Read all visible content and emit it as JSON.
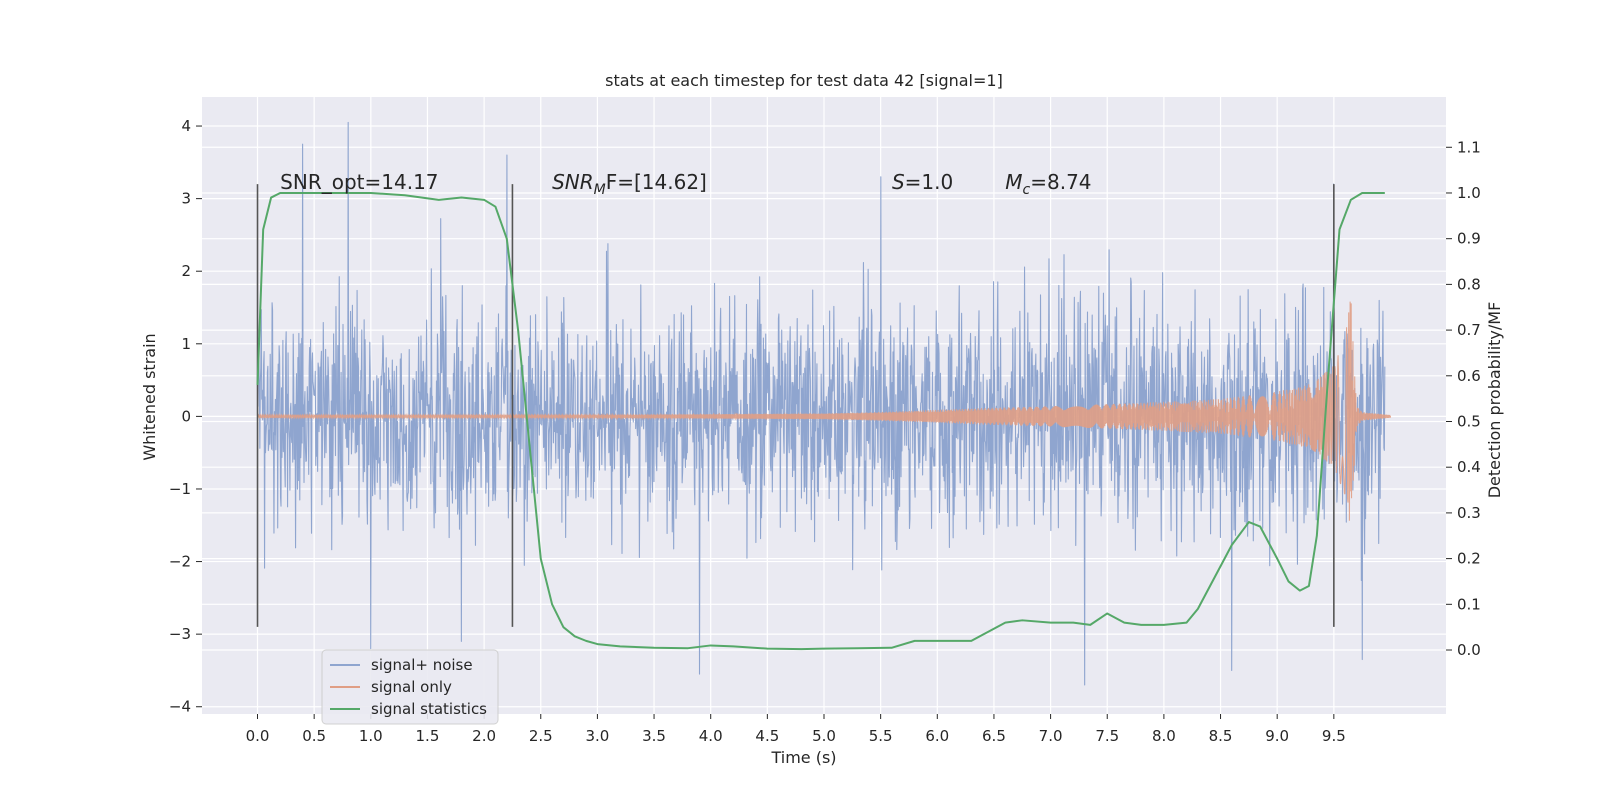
{
  "chart_data": {
    "type": "line",
    "title": "stats at each timestep for test data 42 [signal=1]",
    "xlabel": "Time (s)",
    "ylabel": "Whitened strain",
    "y2label": "Detection probability/MF",
    "xlim": [
      -0.49,
      10.49
    ],
    "ylim": [
      -4.1,
      4.4
    ],
    "y2lim": [
      -0.14,
      1.21
    ],
    "grid": true,
    "legend_position": "lower-left",
    "x_ticks": [
      0.0,
      0.5,
      1.0,
      1.5,
      2.0,
      2.5,
      3.0,
      3.5,
      4.0,
      4.5,
      5.0,
      5.5,
      6.0,
      6.5,
      7.0,
      7.5,
      8.0,
      8.5,
      9.0,
      9.5
    ],
    "x_tick_labels": [
      "0.0",
      "0.5",
      "1.0",
      "1.5",
      "2.0",
      "2.5",
      "3.0",
      "3.5",
      "4.0",
      "4.5",
      "5.0",
      "5.5",
      "6.0",
      "6.5",
      "7.0",
      "7.5",
      "8.0",
      "8.5",
      "9.0",
      "9.5"
    ],
    "y_ticks": [
      4,
      3,
      2,
      1,
      0,
      -1,
      -2,
      -3,
      -4
    ],
    "y_tick_labels": [
      "4",
      "3",
      "2",
      "1",
      "0",
      "−1",
      "−2",
      "−3",
      "−4"
    ],
    "y2_ticks": [
      1.1,
      1.0,
      0.9,
      0.8,
      0.7,
      0.6,
      0.5,
      0.4,
      0.3,
      0.2,
      0.1,
      0.0
    ],
    "y2_tick_labels": [
      "1.1",
      "1.0",
      "0.9",
      "0.8",
      "0.7",
      "0.6",
      "0.5",
      "0.4",
      "0.3",
      "0.2",
      "0.1",
      "0.0"
    ],
    "annotations": [
      {
        "name": "snr-opt",
        "text": "SNR_opt=14.17",
        "x": 0.2
      },
      {
        "name": "snr-mf",
        "text": "SNR",
        "sub": "M",
        "after": "F=[14.62]",
        "italic_prefix": true,
        "x": 2.6
      },
      {
        "name": "s-value",
        "text": "S",
        "after": "=1.0",
        "italic_prefix": true,
        "x": 5.6
      },
      {
        "name": "mc-value",
        "text": "M",
        "sub": "c",
        "after": "=8.74",
        "italic_prefix": true,
        "x": 6.6
      }
    ],
    "annotation_y": 3.2,
    "vlines": [
      {
        "x": 0.0,
        "ymin": -2.9,
        "ymax": 3.2
      },
      {
        "x": 2.25,
        "ymin": -2.9,
        "ymax": 3.2
      },
      {
        "x": 9.5,
        "ymin": -2.9,
        "ymax": 3.2
      }
    ],
    "series": [
      {
        "name": "signal+ noise",
        "color": "#8fa5cf",
        "description": "whitened strain, noise std ~0.75, spans 0 to 9.95 s",
        "x_range": [
          0.0,
          9.95
        ],
        "envelope_upper": [
          2.0,
          2.6,
          2.6,
          3.0,
          2.8,
          2.5,
          3.0,
          2.5,
          2.3,
          2.6,
          2.2,
          2.5,
          2.4,
          2.2,
          2.3,
          2.5,
          2.1,
          2.4,
          2.6,
          2.5
        ],
        "envelope_lower": [
          -2.4,
          -2.3,
          -2.1,
          -2.6,
          -2.3,
          -2.2,
          -2.4,
          -2.5,
          -2.7,
          -2.4,
          -2.2,
          -2.6,
          -2.6,
          -2.5,
          -2.5,
          -2.7,
          -2.3,
          -2.4,
          -2.5,
          -2.6
        ],
        "peaks": [
          [
            0.4,
            3.75
          ],
          [
            0.8,
            4.05
          ],
          [
            1.0,
            -3.2
          ],
          [
            1.8,
            -3.1
          ],
          [
            2.2,
            3.6
          ],
          [
            3.9,
            -3.55
          ],
          [
            5.5,
            3.3
          ],
          [
            7.3,
            -3.7
          ],
          [
            8.6,
            -3.5
          ],
          [
            9.75,
            -3.35
          ],
          [
            9.5,
            3.2
          ]
        ]
      },
      {
        "name": "signal only",
        "color": "#e09e85",
        "description": "chirp waveform, amplitude grows toward merger ~9.65 s",
        "x": [
          0.0,
          1.0,
          2.0,
          3.0,
          4.0,
          5.0,
          5.5,
          6.0,
          6.5,
          7.0,
          7.5,
          8.0,
          8.5,
          9.0,
          9.3,
          9.5,
          9.6,
          9.65,
          9.7,
          9.75,
          10.0
        ],
        "amplitude": [
          0.02,
          0.02,
          0.02,
          0.02,
          0.03,
          0.04,
          0.06,
          0.09,
          0.12,
          0.14,
          0.17,
          0.2,
          0.24,
          0.34,
          0.45,
          0.7,
          1.1,
          1.65,
          0.15,
          0.06,
          0.02
        ]
      },
      {
        "name": "signal statistics",
        "color": "#55a868",
        "axis": "right",
        "x": [
          0.0,
          0.05,
          0.12,
          0.2,
          0.35,
          0.6,
          1.0,
          1.3,
          1.6,
          1.8,
          2.0,
          2.1,
          2.2,
          2.3,
          2.4,
          2.5,
          2.6,
          2.7,
          2.8,
          2.9,
          3.0,
          3.2,
          3.5,
          3.8,
          4.0,
          4.2,
          4.5,
          4.8,
          5.0,
          5.3,
          5.6,
          5.8,
          6.0,
          6.3,
          6.45,
          6.6,
          6.75,
          7.0,
          7.2,
          7.35,
          7.5,
          7.65,
          7.8,
          8.0,
          8.2,
          8.3,
          8.45,
          8.6,
          8.75,
          8.85,
          9.0,
          9.1,
          9.2,
          9.28,
          9.35,
          9.45,
          9.55,
          9.65,
          9.75,
          9.85,
          9.95
        ],
        "y": [
          0.58,
          0.92,
          0.99,
          1.0,
          1.0,
          1.0,
          1.0,
          0.995,
          0.985,
          0.99,
          0.985,
          0.97,
          0.9,
          0.7,
          0.45,
          0.2,
          0.1,
          0.05,
          0.03,
          0.02,
          0.013,
          0.008,
          0.005,
          0.004,
          0.01,
          0.008,
          0.003,
          0.002,
          0.003,
          0.004,
          0.005,
          0.02,
          0.02,
          0.02,
          0.04,
          0.06,
          0.065,
          0.06,
          0.06,
          0.055,
          0.08,
          0.06,
          0.055,
          0.055,
          0.06,
          0.09,
          0.16,
          0.23,
          0.28,
          0.27,
          0.2,
          0.15,
          0.13,
          0.14,
          0.25,
          0.6,
          0.92,
          0.985,
          1.0,
          1.0,
          1.0
        ]
      }
    ]
  }
}
